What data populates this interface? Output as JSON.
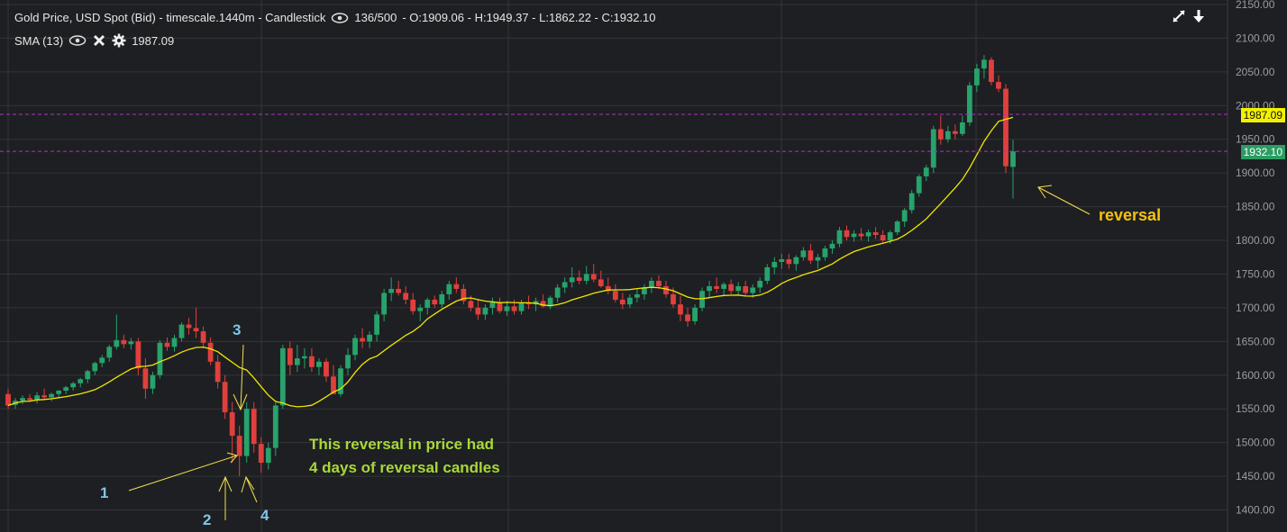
{
  "header": {
    "title": "Gold Price, USD Spot (Bid) - timescale.1440m - Candlestick",
    "bars": "136/500",
    "ohlc": "- O:1909.06 - H:1949.37 - L:1862.22 - C:1932.10",
    "indicator_name": "SMA (13)",
    "indicator_value": "1987.09"
  },
  "price_tags": {
    "sma": "1987.09",
    "close": "1932.10"
  },
  "annotations": {
    "reversal": "reversal",
    "text_line1": "This reversal in price had",
    "text_line2": "4 days of reversal candles",
    "n1": "1",
    "n2": "2",
    "n3": "3",
    "n4": "4"
  },
  "colors": {
    "background": "#1e1f22",
    "grid": "#33353a",
    "up": "#27a36b",
    "down": "#e0403d",
    "sma": "#f2e600",
    "hline": "#b030c8",
    "annotation_arrow": "#f4e04d"
  },
  "chart_data": {
    "type": "candlestick",
    "title": "Gold Price, USD Spot (Bid) - timescale.1440m - Candlestick",
    "ylim": [
      1390,
      2150
    ],
    "y_ticks": [
      2150,
      2100,
      2050,
      2000,
      1950,
      1900,
      1850,
      1800,
      1750,
      1700,
      1650,
      1600,
      1550,
      1500,
      1450,
      1400
    ],
    "hlines": [
      1987.09,
      1932.1
    ],
    "grid": true,
    "candles_ohlc": [
      [
        1572,
        1580,
        1550,
        1555
      ],
      [
        1556,
        1566,
        1550,
        1562
      ],
      [
        1562,
        1570,
        1557,
        1566
      ],
      [
        1566,
        1572,
        1560,
        1563
      ],
      [
        1563,
        1575,
        1558,
        1570
      ],
      [
        1570,
        1580,
        1564,
        1567
      ],
      [
        1567,
        1574,
        1561,
        1572
      ],
      [
        1572,
        1578,
        1566,
        1577
      ],
      [
        1577,
        1584,
        1572,
        1582
      ],
      [
        1582,
        1590,
        1577,
        1588
      ],
      [
        1588,
        1596,
        1582,
        1594
      ],
      [
        1594,
        1608,
        1588,
        1606
      ],
      [
        1606,
        1620,
        1600,
        1618
      ],
      [
        1618,
        1630,
        1612,
        1626
      ],
      [
        1626,
        1645,
        1620,
        1642
      ],
      [
        1642,
        1690,
        1638,
        1652
      ],
      [
        1652,
        1660,
        1640,
        1646
      ],
      [
        1646,
        1655,
        1638,
        1650
      ],
      [
        1650,
        1655,
        1600,
        1610
      ],
      [
        1610,
        1625,
        1565,
        1580
      ],
      [
        1580,
        1605,
        1572,
        1600
      ],
      [
        1600,
        1652,
        1595,
        1648
      ],
      [
        1648,
        1656,
        1636,
        1642
      ],
      [
        1642,
        1660,
        1635,
        1655
      ],
      [
        1655,
        1678,
        1650,
        1675
      ],
      [
        1675,
        1685,
        1660,
        1670
      ],
      [
        1670,
        1700,
        1655,
        1665
      ],
      [
        1665,
        1672,
        1640,
        1648
      ],
      [
        1648,
        1656,
        1615,
        1620
      ],
      [
        1620,
        1630,
        1580,
        1590
      ],
      [
        1590,
        1600,
        1535,
        1545
      ],
      [
        1545,
        1560,
        1470,
        1510
      ],
      [
        1510,
        1525,
        1450,
        1480
      ],
      [
        1480,
        1560,
        1470,
        1550
      ],
      [
        1550,
        1560,
        1485,
        1498
      ],
      [
        1498,
        1508,
        1455,
        1470
      ],
      [
        1470,
        1500,
        1460,
        1492
      ],
      [
        1492,
        1560,
        1480,
        1555
      ],
      [
        1555,
        1645,
        1550,
        1640
      ],
      [
        1640,
        1650,
        1600,
        1615
      ],
      [
        1615,
        1645,
        1605,
        1625
      ],
      [
        1625,
        1640,
        1610,
        1628
      ],
      [
        1628,
        1640,
        1605,
        1612
      ],
      [
        1612,
        1625,
        1600,
        1620
      ],
      [
        1620,
        1625,
        1590,
        1598
      ],
      [
        1598,
        1615,
        1585,
        1572
      ],
      [
        1572,
        1615,
        1568,
        1610
      ],
      [
        1610,
        1640,
        1600,
        1630
      ],
      [
        1630,
        1660,
        1622,
        1655
      ],
      [
        1655,
        1670,
        1640,
        1650
      ],
      [
        1650,
        1665,
        1640,
        1660
      ],
      [
        1660,
        1695,
        1650,
        1690
      ],
      [
        1690,
        1728,
        1680,
        1722
      ],
      [
        1722,
        1745,
        1710,
        1728
      ],
      [
        1728,
        1740,
        1718,
        1722
      ],
      [
        1722,
        1732,
        1705,
        1712
      ],
      [
        1712,
        1722,
        1690,
        1695
      ],
      [
        1695,
        1705,
        1680,
        1700
      ],
      [
        1700,
        1715,
        1690,
        1712
      ],
      [
        1712,
        1718,
        1700,
        1705
      ],
      [
        1705,
        1725,
        1700,
        1720
      ],
      [
        1720,
        1740,
        1712,
        1735
      ],
      [
        1735,
        1745,
        1722,
        1728
      ],
      [
        1728,
        1735,
        1705,
        1710
      ],
      [
        1710,
        1718,
        1695,
        1700
      ],
      [
        1700,
        1712,
        1682,
        1690
      ],
      [
        1690,
        1705,
        1682,
        1700
      ],
      [
        1700,
        1715,
        1690,
        1708
      ],
      [
        1708,
        1715,
        1692,
        1695
      ],
      [
        1695,
        1710,
        1688,
        1702
      ],
      [
        1702,
        1712,
        1690,
        1695
      ],
      [
        1695,
        1712,
        1690,
        1708
      ],
      [
        1708,
        1718,
        1698,
        1705
      ],
      [
        1705,
        1715,
        1695,
        1710
      ],
      [
        1710,
        1720,
        1700,
        1702
      ],
      [
        1702,
        1718,
        1698,
        1715
      ],
      [
        1715,
        1735,
        1708,
        1730
      ],
      [
        1730,
        1745,
        1722,
        1738
      ],
      [
        1738,
        1760,
        1730,
        1745
      ],
      [
        1745,
        1755,
        1735,
        1740
      ],
      [
        1740,
        1762,
        1735,
        1750
      ],
      [
        1750,
        1765,
        1738,
        1742
      ],
      [
        1742,
        1755,
        1730,
        1732
      ],
      [
        1732,
        1745,
        1720,
        1725
      ],
      [
        1725,
        1735,
        1708,
        1712
      ],
      [
        1712,
        1722,
        1698,
        1705
      ],
      [
        1705,
        1720,
        1700,
        1715
      ],
      [
        1715,
        1728,
        1708,
        1720
      ],
      [
        1720,
        1735,
        1712,
        1730
      ],
      [
        1730,
        1745,
        1722,
        1740
      ],
      [
        1740,
        1748,
        1728,
        1732
      ],
      [
        1732,
        1740,
        1715,
        1720
      ],
      [
        1720,
        1730,
        1700,
        1705
      ],
      [
        1705,
        1718,
        1680,
        1690
      ],
      [
        1690,
        1700,
        1672,
        1680
      ],
      [
        1680,
        1705,
        1675,
        1700
      ],
      [
        1700,
        1730,
        1695,
        1725
      ],
      [
        1725,
        1740,
        1715,
        1732
      ],
      [
        1732,
        1745,
        1722,
        1728
      ],
      [
        1728,
        1738,
        1718,
        1735
      ],
      [
        1735,
        1742,
        1720,
        1725
      ],
      [
        1725,
        1738,
        1718,
        1732
      ],
      [
        1732,
        1740,
        1718,
        1722
      ],
      [
        1722,
        1735,
        1715,
        1730
      ],
      [
        1730,
        1745,
        1722,
        1740
      ],
      [
        1740,
        1765,
        1735,
        1760
      ],
      [
        1760,
        1775,
        1750,
        1768
      ],
      [
        1768,
        1780,
        1758,
        1772
      ],
      [
        1772,
        1780,
        1758,
        1765
      ],
      [
        1765,
        1778,
        1755,
        1775
      ],
      [
        1775,
        1790,
        1770,
        1785
      ],
      [
        1785,
        1795,
        1765,
        1770
      ],
      [
        1770,
        1780,
        1758,
        1775
      ],
      [
        1775,
        1792,
        1770,
        1788
      ],
      [
        1788,
        1800,
        1780,
        1795
      ],
      [
        1795,
        1820,
        1790,
        1815
      ],
      [
        1815,
        1822,
        1800,
        1805
      ],
      [
        1805,
        1815,
        1798,
        1810
      ],
      [
        1810,
        1818,
        1800,
        1806
      ],
      [
        1806,
        1816,
        1798,
        1812
      ],
      [
        1812,
        1820,
        1802,
        1808
      ],
      [
        1808,
        1815,
        1796,
        1800
      ],
      [
        1800,
        1815,
        1795,
        1812
      ],
      [
        1812,
        1830,
        1808,
        1828
      ],
      [
        1828,
        1848,
        1820,
        1845
      ],
      [
        1845,
        1875,
        1840,
        1870
      ],
      [
        1870,
        1898,
        1865,
        1895
      ],
      [
        1895,
        1912,
        1888,
        1908
      ],
      [
        1908,
        1970,
        1900,
        1965
      ],
      [
        1965,
        1985,
        1942,
        1950
      ],
      [
        1950,
        1970,
        1945,
        1962
      ],
      [
        1962,
        1972,
        1950,
        1958
      ],
      [
        1958,
        1985,
        1955,
        1975
      ],
      [
        1975,
        2035,
        1970,
        2030
      ],
      [
        2030,
        2062,
        2020,
        2055
      ],
      [
        2055,
        2075,
        2040,
        2068
      ],
      [
        2068,
        2072,
        2030,
        2035
      ],
      [
        2035,
        2045,
        2020,
        2025
      ],
      [
        2025,
        2032,
        1900,
        1910
      ],
      [
        1909.06,
        1949.37,
        1862.22,
        1932.1
      ]
    ]
  }
}
